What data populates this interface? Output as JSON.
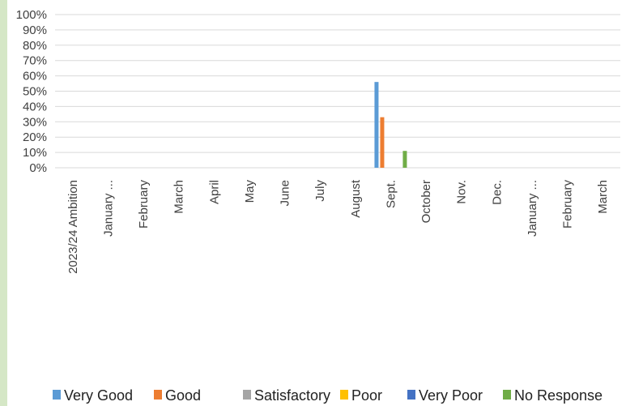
{
  "chart_data": {
    "type": "bar",
    "categories": [
      "2023/24 Ambition",
      "January ...",
      "February",
      "March",
      "April",
      "May",
      "June",
      "July",
      "August",
      "Sept.",
      "October",
      "Nov.",
      "Dec.",
      "January ...",
      "February",
      "March"
    ],
    "series": [
      {
        "name": "Very Good",
        "color": "#5b9bd5",
        "values": [
          0,
          0,
          0,
          0,
          0,
          0,
          0,
          0,
          0,
          56,
          0,
          0,
          0,
          0,
          0,
          0
        ]
      },
      {
        "name": "Good",
        "color": "#ed7d31",
        "values": [
          0,
          0,
          0,
          0,
          0,
          0,
          0,
          0,
          0,
          33,
          0,
          0,
          0,
          0,
          0,
          0
        ]
      },
      {
        "name": "Satisfactory",
        "color": "#a5a5a5",
        "values": [
          0,
          0,
          0,
          0,
          0,
          0,
          0,
          0,
          0,
          0,
          0,
          0,
          0,
          0,
          0,
          0
        ]
      },
      {
        "name": "Poor",
        "color": "#ffc000",
        "values": [
          0,
          0,
          0,
          0,
          0,
          0,
          0,
          0,
          0,
          0,
          0,
          0,
          0,
          0,
          0,
          0
        ]
      },
      {
        "name": "Very Poor",
        "color": "#4472c4",
        "values": [
          0,
          0,
          0,
          0,
          0,
          0,
          0,
          0,
          0,
          0,
          0,
          0,
          0,
          0,
          0,
          0
        ]
      },
      {
        "name": "No Response",
        "color": "#70ad47",
        "values": [
          0,
          0,
          0,
          0,
          0,
          0,
          0,
          0,
          0,
          11,
          0,
          0,
          0,
          0,
          0,
          0
        ]
      }
    ],
    "y_ticks": [
      "0%",
      "10%",
      "20%",
      "30%",
      "40%",
      "50%",
      "60%",
      "70%",
      "80%",
      "90%",
      "100%"
    ],
    "ylim": [
      0,
      100
    ],
    "grid": true,
    "legend_position": "bottom"
  }
}
